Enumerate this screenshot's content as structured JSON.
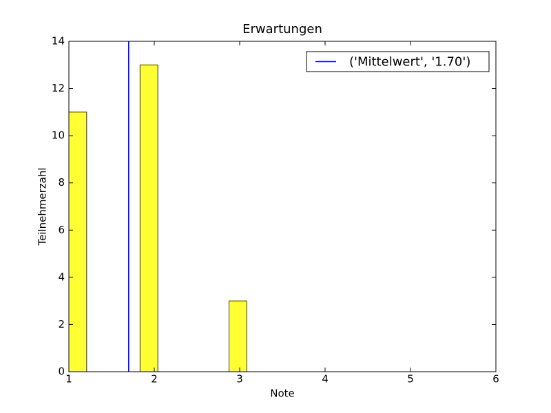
{
  "chart_data": {
    "type": "histogram",
    "title": "Erwartungen",
    "x_label": "Note",
    "y_label": "Teilnehmerzahl",
    "bins": [
      1,
      1.2083,
      1.4167,
      1.625,
      1.8333,
      2.0417,
      2.25,
      2.4583,
      2.6667,
      2.875,
      3.0833,
      3.2917,
      3.5,
      3.7083,
      3.9167,
      4.125,
      4.3333,
      4.5417,
      4.75,
      4.9583,
      5.1667,
      5.375,
      5.5833,
      5.7917,
      6
    ],
    "counts": [
      11,
      0,
      0,
      0,
      13,
      0,
      0,
      0,
      0,
      3,
      0,
      0,
      0,
      0,
      0,
      0,
      0,
      0,
      0,
      0,
      0,
      0,
      0,
      0
    ],
    "color": "#ffff33",
    "edge_color": "#333333",
    "mean_line": {
      "x": 1.7,
      "color": "#0000ff",
      "label": "('Mittelwert', '1.70')"
    },
    "xlim": [
      1,
      6
    ],
    "ylim": [
      0,
      14
    ],
    "xticks": [
      1,
      2,
      3,
      4,
      5,
      6
    ],
    "yticks": [
      0,
      2,
      4,
      6,
      8,
      10,
      12,
      14
    ],
    "legend": "upper right"
  }
}
